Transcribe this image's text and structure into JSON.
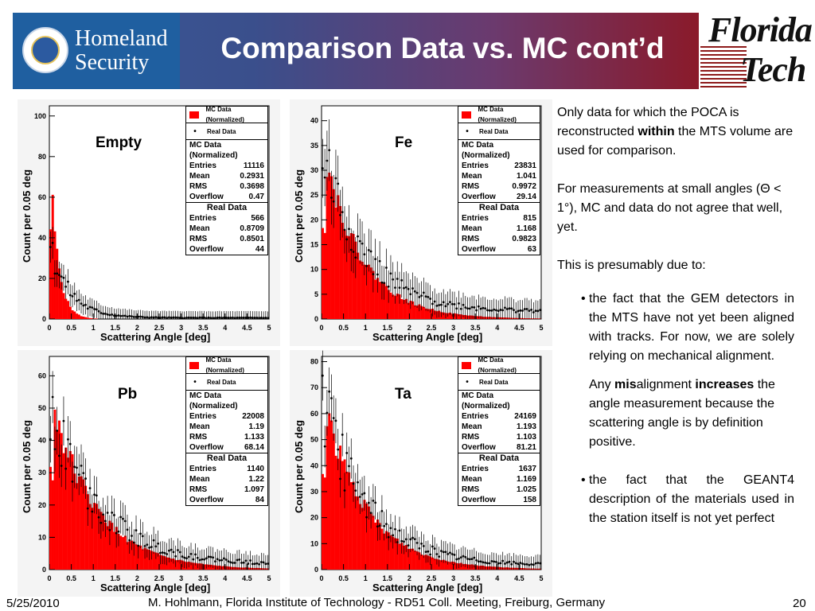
{
  "header": {
    "title": "Comparison Data vs. MC cont’d",
    "dhs_line1": "Homeland",
    "dhs_line2": "Security",
    "ft_line1": "Florida",
    "ft_line2": "Tech"
  },
  "plots": {
    "axis_y": "Count per 0.05 deg",
    "axis_x": "Scattering Angle [deg]",
    "legend_mc": "MC Data (Normalized)",
    "legend_real": "Real Data",
    "mc_header": "MC Data (Normalized)",
    "real_header": "Real Data",
    "lbl_entries": "Entries",
    "lbl_mean": "Mean",
    "lbl_rms": "RMS",
    "lbl_overflow": "Overflow",
    "x_ticks": [
      "0",
      "0.5",
      "1",
      "1.5",
      "2",
      "2.5",
      "3",
      "3.5",
      "4",
      "4.5",
      "5"
    ],
    "empty": {
      "label": "Empty",
      "y_ticks": [
        "0",
        "20",
        "40",
        "60",
        "80",
        "100"
      ],
      "mc": {
        "entries": "11116",
        "mean": "0.2931",
        "rms": "0.3698",
        "overflow": "0.47"
      },
      "real": {
        "entries": "566",
        "mean": "0.8709",
        "rms": "0.8501",
        "overflow": "44"
      }
    },
    "fe": {
      "label": "Fe",
      "y_ticks": [
        "0",
        "5",
        "10",
        "15",
        "20",
        "25",
        "30",
        "35",
        "40"
      ],
      "mc": {
        "entries": "23831",
        "mean": "1.041",
        "rms": "0.9972",
        "overflow": "29.14"
      },
      "real": {
        "entries": "815",
        "mean": "1.168",
        "rms": "0.9823",
        "overflow": "63"
      }
    },
    "pb": {
      "label": "Pb",
      "y_ticks": [
        "0",
        "10",
        "20",
        "30",
        "40",
        "50",
        "60"
      ],
      "mc": {
        "entries": "22008",
        "mean": "1.19",
        "rms": "1.133",
        "overflow": "68.14"
      },
      "real": {
        "entries": "1140",
        "mean": "1.22",
        "rms": "1.097",
        "overflow": "84"
      }
    },
    "ta": {
      "label": "Ta",
      "y_ticks": [
        "0",
        "10",
        "20",
        "30",
        "40",
        "50",
        "60",
        "70",
        "80"
      ],
      "mc": {
        "entries": "24169",
        "mean": "1.193",
        "rms": "1.103",
        "overflow": "81.21"
      },
      "real": {
        "entries": "1637",
        "mean": "1.169",
        "rms": "1.025",
        "overflow": "158"
      }
    }
  },
  "notes": {
    "p1_a": "Only data for which the POCA is reconstructed ",
    "p1_b": "within",
    "p1_c": " the MTS volume are used for comparison.",
    "p2": "For measurements at small angles (Θ < 1°), MC and data do not agree that well, yet.",
    "p3": "This is presumably due to:",
    "bullet1": "the fact that the GEM detectors in the MTS have not yet been aligned with tracks. For now, we are solely relying on mechanical alignment.",
    "sub_a": "Any ",
    "sub_b": "mis",
    "sub_c": "alignment ",
    "sub_d": "increases",
    "sub_e": " the angle measurement because the scattering angle is by definition positive.",
    "bullet2": "the fact that the GEANT4 description of the materials used in the station itself is not yet perfect"
  },
  "footer": {
    "date": "5/25/2010",
    "citation": "M. Hohlmann, Florida Institute of Technology - RD51 Coll. Meeting, Freiburg, Germany",
    "page": "20"
  }
}
